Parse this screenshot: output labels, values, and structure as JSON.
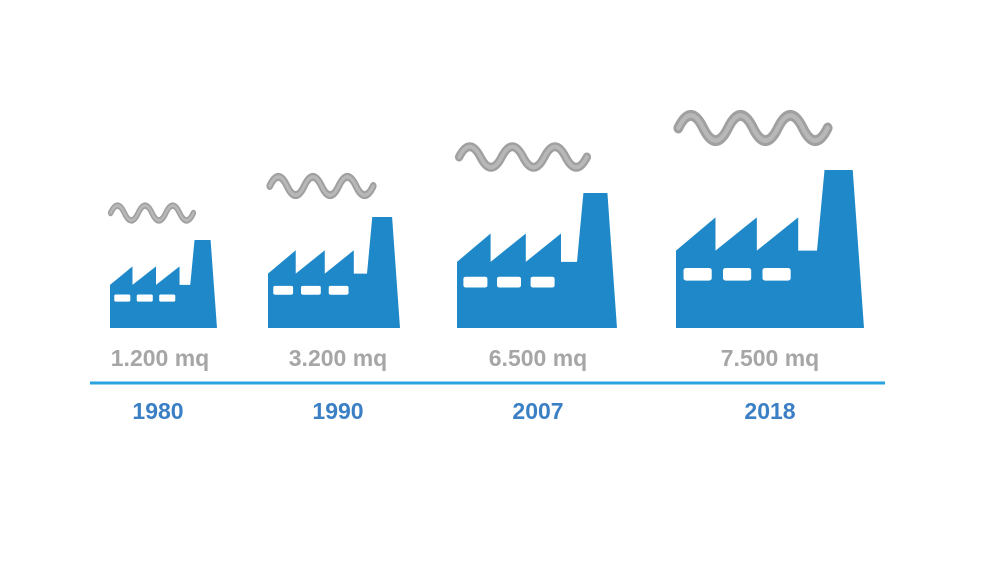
{
  "items": [
    {
      "area": "1.200 mq",
      "year": "1980"
    },
    {
      "area": "3.200 mq",
      "year": "1990"
    },
    {
      "area": "6.500 mq",
      "year": "2007"
    },
    {
      "area": "7.500 mq",
      "year": "2018"
    }
  ]
}
